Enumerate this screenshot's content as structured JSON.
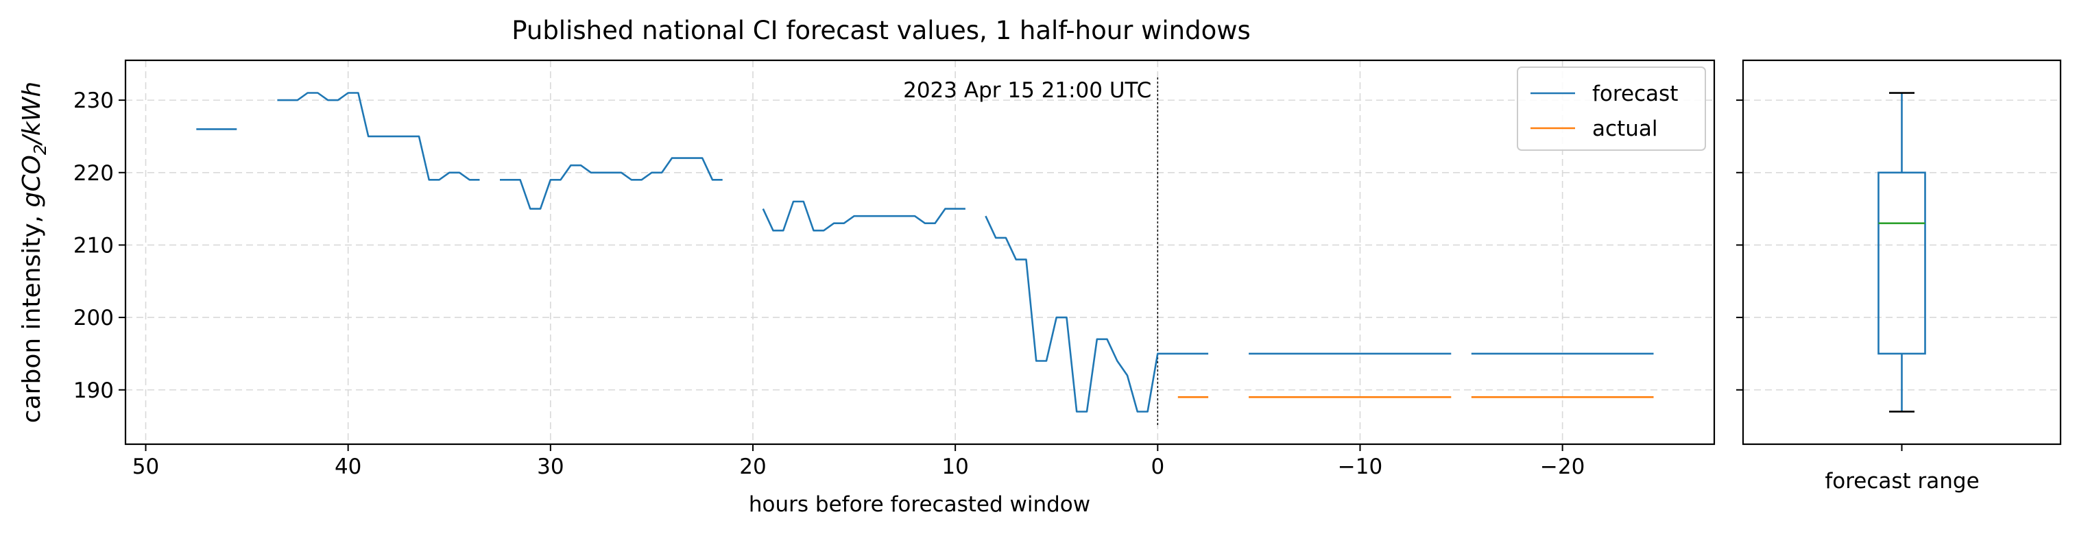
{
  "chart_data": {
    "type": "line",
    "title": "Published national CI forecast values, 1 half-hour windows",
    "xlabel": "hours before forecasted window",
    "ylabel_main": "carbon intensity, ",
    "ylabel_math": "gCO",
    "ylabel_sub": "2",
    "ylabel_tail": "/kWh",
    "xlim": [
      51,
      -27.5
    ],
    "ylim": [
      182.5,
      235.5
    ],
    "x_ticks": [
      50,
      40,
      30,
      20,
      10,
      0,
      -10,
      -20
    ],
    "x_tick_labels": [
      "50",
      "40",
      "30",
      "20",
      "10",
      "0",
      "−10",
      "−20"
    ],
    "y_ticks": [
      190,
      200,
      210,
      220,
      230
    ],
    "y_tick_labels": [
      "190",
      "200",
      "210",
      "220",
      "230"
    ],
    "annotation": {
      "text": "2023 Apr 15 21:00 UTC",
      "x": 0
    },
    "legend": {
      "position": "top-right",
      "entries": [
        "forecast",
        "actual"
      ]
    },
    "colors": {
      "forecast": "#1f77b4",
      "actual": "#ff7f0e",
      "median": "#2ca02c",
      "grid": "#d9d9d9"
    },
    "series": [
      {
        "name": "forecast",
        "segments": [
          {
            "x": [
              47.5,
              45.5
            ],
            "y": [
              226,
              226
            ]
          },
          {
            "x": [
              43.5,
              42.5,
              42,
              41.5,
              41,
              40.5,
              40,
              39.5,
              39,
              38.5,
              36.5,
              36,
              35.5,
              35,
              34.5,
              34,
              33.5
            ],
            "y": [
              230,
              230,
              231,
              231,
              230,
              230,
              231,
              231,
              225,
              225,
              225,
              219,
              219,
              220,
              220,
              219,
              219
            ]
          },
          {
            "x": [
              32.5,
              31.5,
              31,
              30.5,
              30,
              29.5,
              29,
              28.5,
              28,
              26.5,
              26,
              25.5,
              25,
              24.5,
              24,
              22.5,
              22,
              21.5
            ],
            "y": [
              219,
              219,
              215,
              215,
              219,
              219,
              221,
              221,
              220,
              220,
              219,
              219,
              220,
              220,
              222,
              222,
              219,
              219
            ]
          },
          {
            "x": [
              19.5,
              19,
              18.5,
              18,
              17.5,
              17,
              16.5,
              16,
              15.5,
              15,
              14.5,
              12,
              11.5,
              11,
              10.5,
              9.5
            ],
            "y": [
              215,
              212,
              212,
              216,
              216,
              212,
              212,
              213,
              213,
              214,
              214,
              214,
              213,
              213,
              215,
              215
            ]
          },
          {
            "x": [
              8.5,
              8,
              7.5,
              7,
              6.5,
              6,
              5.5,
              5,
              4.5,
              4,
              3.5,
              3,
              2.5,
              2,
              1.5,
              1,
              0.5,
              0,
              -0.5,
              -2.5
            ],
            "y": [
              214,
              211,
              211,
              208,
              208,
              194,
              194,
              200,
              200,
              187,
              187,
              197,
              197,
              194,
              192,
              187,
              187,
              195,
              195,
              195
            ]
          },
          {
            "x": [
              -4.5,
              -14.5
            ],
            "y": [
              195,
              195
            ]
          },
          {
            "x": [
              -15.5,
              -24.5
            ],
            "y": [
              195,
              195
            ]
          }
        ]
      },
      {
        "name": "actual",
        "segments": [
          {
            "x": [
              -1,
              -2.5
            ],
            "y": [
              189,
              189
            ]
          },
          {
            "x": [
              -4.5,
              -14.5
            ],
            "y": [
              189,
              189
            ]
          },
          {
            "x": [
              -15.5,
              -24.5
            ],
            "y": [
              189,
              189
            ]
          }
        ]
      }
    ],
    "boxplot": {
      "label": "forecast range",
      "whisker_low": 187,
      "q1": 195,
      "median": 213,
      "q3": 220,
      "whisker_high": 231
    }
  }
}
